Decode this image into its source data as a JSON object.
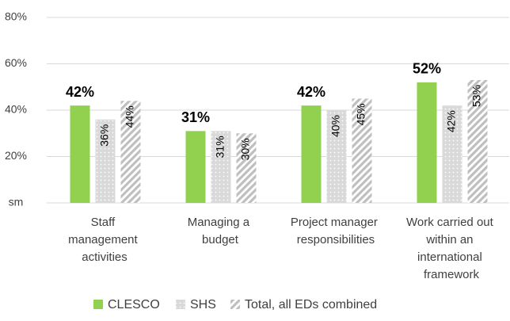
{
  "chart_data": {
    "type": "bar",
    "categories": [
      "Staff management activities",
      "Managing a budget",
      "Project manager responsibilities",
      "Work carried out within an international framework"
    ],
    "series": [
      {
        "name": "CLESCO",
        "color": "#92d050",
        "values": [
          42,
          31,
          42,
          52
        ],
        "value_labels": [
          "42%",
          "31%",
          "42%",
          "52%"
        ]
      },
      {
        "name": "SHS",
        "color": "#d9d9d9",
        "values": [
          36,
          31,
          40,
          42
        ],
        "value_labels": [
          "36%",
          "31%",
          "40%",
          "42%"
        ]
      },
      {
        "name": "Total, all EDs combined",
        "color": "#bfbfbf",
        "values": [
          44,
          30,
          45,
          53
        ],
        "value_labels": [
          "44%",
          "30%",
          "45%",
          "53%"
        ]
      }
    ],
    "ylim": [
      0,
      80
    ],
    "yticks": [
      {
        "value": 0,
        "label": "sm"
      },
      {
        "value": 20,
        "label": "20%"
      },
      {
        "value": 40,
        "label": "40%"
      },
      {
        "value": 60,
        "label": "60%"
      },
      {
        "value": 80,
        "label": "80%"
      }
    ],
    "grid": true,
    "legend": "bottom"
  }
}
